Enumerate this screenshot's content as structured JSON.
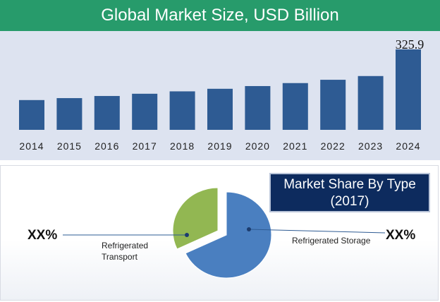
{
  "header": {
    "title": "Global Market Size, USD Billion"
  },
  "colors": {
    "header": "#279b6b",
    "bar": "#2e5b93",
    "panel": "#dde3f0",
    "slice_storage": "#4a7fc0",
    "slice_transport": "#92b752"
  },
  "chart_data": [
    {
      "type": "bar",
      "title": "Global Market Size, USD Billion",
      "categories": [
        "2014",
        "2015",
        "2016",
        "2017",
        "2018",
        "2019",
        "2020",
        "2021",
        "2022",
        "2023",
        "2024"
      ],
      "values": [
        120.6,
        128.5,
        137.1,
        146.2,
        155.9,
        166.3,
        177.3,
        189.4,
        202.8,
        217.9,
        325.9
      ],
      "value_labels": [
        "",
        "",
        "",
        "",
        "",
        "",
        "",
        "",
        "",
        "",
        "325.9"
      ],
      "grid": false
    },
    {
      "type": "pie",
      "title": "Market Share By Type (2017)",
      "title_lines": [
        "Market Share By Type",
        "(2017)"
      ],
      "slices": [
        {
          "label": "Refrigerated Storage",
          "label_lines": [
            "Refrigerated Storage"
          ],
          "value_text": "XX%",
          "share": 0.68,
          "color": "#4a7fc0"
        },
        {
          "label": "Refrigerated Transport",
          "label_lines": [
            "Refrigerated",
            "Transport"
          ],
          "value_text": "XX%",
          "share": 0.32,
          "color": "#92b752"
        }
      ]
    }
  ]
}
